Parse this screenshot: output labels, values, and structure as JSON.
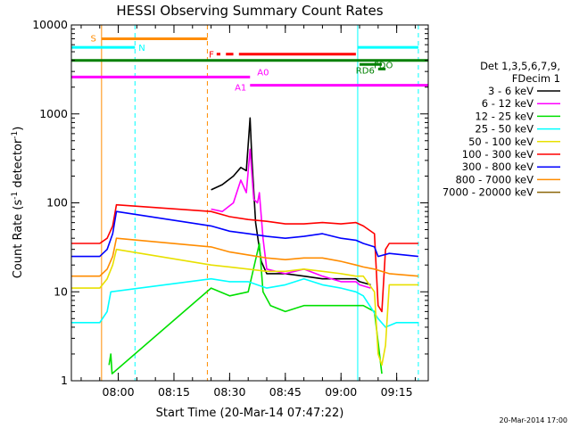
{
  "chart_data": {
    "type": "line",
    "title": "HESSI Observing Summary Count Rates",
    "xlabel": "Start Time (20-Mar-14 07:47:22)",
    "ylabel": "Count Rate (s⁻¹ detector⁻¹)",
    "ylabel_main": "Count Rate (s",
    "ylabel_exp1": "-1",
    "ylabel_mid": " detector",
    "ylabel_exp2": "-1",
    "ylabel_end": ")",
    "footer": "20-Mar-2014 17:00",
    "y_scale": "log",
    "xlim": [
      "07:47:22",
      "09:23:30"
    ],
    "ylim": [
      1,
      10000
    ],
    "x_ticks": [
      "08:00",
      "08:15",
      "08:30",
      "08:45",
      "09:00",
      "09:15"
    ],
    "y_ticks": [
      "1",
      "10",
      "100",
      "1000",
      "10000"
    ],
    "legend": {
      "placement": "right",
      "header": [
        "Det 1,3,5,6,7,9,",
        "FDecim 1"
      ],
      "entries": [
        {
          "label": "3 - 6 keV",
          "color": "#000000"
        },
        {
          "label": "6 - 12 keV",
          "color": "#ff00ff"
        },
        {
          "label": "12 - 25 keV",
          "color": "#00e000"
        },
        {
          "label": "25 - 50 keV",
          "color": "#00ffff"
        },
        {
          "label": "50 - 100 keV",
          "color": "#e8e000"
        },
        {
          "label": "100 - 300 keV",
          "color": "#ff0000"
        },
        {
          "label": "300 - 800 keV",
          "color": "#0000ff"
        },
        {
          "label": "800 - 7000 keV",
          "color": "#ff8c00"
        },
        {
          "label": "7000 - 20000 keV",
          "color": "#8b6508"
        }
      ]
    },
    "vertical_lines": [
      {
        "time": "07:47:22",
        "color": "#00ffff",
        "style": "solid"
      },
      {
        "time": "07:55:30",
        "color": "#ff8c00",
        "style": "solid"
      },
      {
        "time": "08:04:30",
        "color": "#00ffff",
        "style": "dashed"
      },
      {
        "time": "08:24:00",
        "color": "#ff8c00",
        "style": "dashed"
      },
      {
        "time": "09:04:30",
        "color": "#00ffff",
        "style": "solid"
      },
      {
        "time": "09:20:50",
        "color": "#00ffff",
        "style": "dashed"
      }
    ],
    "flag_bars": [
      {
        "label": "S",
        "color": "#ff8c00",
        "y": 7000,
        "segments": [
          [
            "07:55:30",
            "08:24:00"
          ]
        ]
      },
      {
        "label": "N",
        "color": "#00ffff",
        "y": 5600,
        "segments": [
          [
            "07:47:22",
            "08:04:30"
          ],
          [
            "09:04:30",
            "09:20:50"
          ]
        ]
      },
      {
        "label": "F",
        "color": "#ff0000",
        "y": 4700,
        "segments": [
          [
            "08:26:30",
            "08:27:30"
          ],
          [
            "08:29:00",
            "08:31:00"
          ],
          [
            "08:32:30",
            "09:04:00"
          ]
        ]
      },
      {
        "label": "",
        "color": "#008000",
        "y": 4000,
        "segments": [
          [
            "07:47:22",
            "09:23:30"
          ]
        ]
      },
      {
        "label": "FDO",
        "color": "#008000",
        "y": 3600,
        "segments": [
          [
            "09:05:00",
            "09:11:00"
          ]
        ]
      },
      {
        "label": "RD6",
        "color": "#008000",
        "y": 3200,
        "segments": [
          [
            "09:10:00",
            "09:12:00"
          ]
        ]
      },
      {
        "label": "A0",
        "color": "#ff00ff",
        "y": 2600,
        "segments": [
          [
            "07:47:22",
            "08:35:30"
          ]
        ]
      },
      {
        "label": "A1",
        "color": "#ff00ff",
        "y": 2100,
        "segments": [
          [
            "08:35:30",
            "09:23:30"
          ]
        ]
      }
    ],
    "series": [
      {
        "name": "3 - 6 keV",
        "color": "#000000",
        "points": [
          [
            "08:25:00",
            140
          ],
          [
            "08:28:00",
            160
          ],
          [
            "08:31:00",
            200
          ],
          [
            "08:33:00",
            250
          ],
          [
            "08:34:30",
            230
          ],
          [
            "08:35:30",
            900
          ],
          [
            "08:36:00",
            300
          ],
          [
            "08:37:00",
            60
          ],
          [
            "08:38:30",
            22
          ],
          [
            "08:40:00",
            16
          ],
          [
            "08:45:00",
            16
          ],
          [
            "08:50:00",
            15
          ],
          [
            "08:55:00",
            14
          ],
          [
            "09:00:00",
            14
          ],
          [
            "09:04:00",
            14
          ],
          [
            "09:05:00",
            13
          ],
          [
            "09:08:00",
            12
          ]
        ]
      },
      {
        "name": "6 - 12 keV",
        "color": "#ff00ff",
        "points": [
          [
            "08:25:00",
            85
          ],
          [
            "08:28:00",
            80
          ],
          [
            "08:31:00",
            100
          ],
          [
            "08:33:00",
            180
          ],
          [
            "08:34:30",
            130
          ],
          [
            "08:35:30",
            400
          ],
          [
            "08:36:30",
            110
          ],
          [
            "08:37:30",
            100
          ],
          [
            "08:38:00",
            130
          ],
          [
            "08:39:00",
            40
          ],
          [
            "08:40:00",
            18
          ],
          [
            "08:45:00",
            16
          ],
          [
            "08:50:00",
            18
          ],
          [
            "08:55:00",
            15
          ],
          [
            "09:00:00",
            13
          ],
          [
            "09:04:00",
            13
          ],
          [
            "09:05:00",
            12
          ],
          [
            "09:08:00",
            11
          ]
        ]
      },
      {
        "name": "12 - 25 keV",
        "color": "#00e000",
        "points": [
          [
            "07:57:30",
            1.5
          ],
          [
            "07:58:00",
            2
          ],
          [
            "07:58:20",
            1.2
          ],
          [
            "08:25:00",
            11
          ],
          [
            "08:30:00",
            9
          ],
          [
            "08:35:00",
            10
          ],
          [
            "08:38:00",
            35
          ],
          [
            "08:39:00",
            10
          ],
          [
            "08:41:00",
            7
          ],
          [
            "08:45:00",
            6
          ],
          [
            "08:50:00",
            7
          ],
          [
            "08:55:00",
            7
          ],
          [
            "09:00:00",
            7
          ],
          [
            "09:04:00",
            7
          ],
          [
            "09:06:00",
            7
          ],
          [
            "09:09:00",
            6
          ],
          [
            "09:11:00",
            1.2
          ]
        ]
      },
      {
        "name": "25 - 50 keV",
        "color": "#00ffff",
        "points": [
          [
            "07:47:22",
            4.5
          ],
          [
            "07:55:00",
            4.5
          ],
          [
            "07:57:00",
            6
          ],
          [
            "07:58:00",
            10
          ],
          [
            "08:25:00",
            14
          ],
          [
            "08:30:00",
            13
          ],
          [
            "08:35:00",
            13
          ],
          [
            "08:40:00",
            11
          ],
          [
            "08:45:00",
            12
          ],
          [
            "08:50:00",
            14
          ],
          [
            "08:55:00",
            12
          ],
          [
            "09:00:00",
            11
          ],
          [
            "09:04:00",
            10
          ],
          [
            "09:06:00",
            9
          ],
          [
            "09:10:00",
            5
          ],
          [
            "09:12:00",
            4
          ],
          [
            "09:15:00",
            4.5
          ],
          [
            "09:20:50",
            4.5
          ]
        ]
      },
      {
        "name": "50 - 100 keV",
        "color": "#e8e000",
        "points": [
          [
            "07:47:22",
            11
          ],
          [
            "07:55:00",
            11
          ],
          [
            "07:57:00",
            14
          ],
          [
            "07:58:30",
            20
          ],
          [
            "07:59:30",
            30
          ],
          [
            "08:25:00",
            20
          ],
          [
            "08:30:00",
            19
          ],
          [
            "08:35:00",
            18
          ],
          [
            "08:40:00",
            17
          ],
          [
            "08:45:00",
            17
          ],
          [
            "08:50:00",
            18
          ],
          [
            "08:55:00",
            17
          ],
          [
            "09:00:00",
            16
          ],
          [
            "09:04:00",
            15
          ],
          [
            "09:06:00",
            15
          ],
          [
            "09:09:00",
            10
          ],
          [
            "09:10:00",
            2
          ],
          [
            "09:11:00",
            1.5
          ],
          [
            "09:12:00",
            2.5
          ],
          [
            "09:13:00",
            12
          ],
          [
            "09:20:50",
            12
          ]
        ]
      },
      {
        "name": "100 - 300 keV",
        "color": "#ff0000",
        "points": [
          [
            "07:47:22",
            35
          ],
          [
            "07:55:00",
            35
          ],
          [
            "07:57:00",
            40
          ],
          [
            "07:58:30",
            55
          ],
          [
            "07:59:30",
            95
          ],
          [
            "08:25:00",
            80
          ],
          [
            "08:30:00",
            70
          ],
          [
            "08:35:00",
            65
          ],
          [
            "08:40:00",
            62
          ],
          [
            "08:45:00",
            58
          ],
          [
            "08:50:00",
            58
          ],
          [
            "08:55:00",
            60
          ],
          [
            "09:00:00",
            58
          ],
          [
            "09:04:00",
            60
          ],
          [
            "09:06:00",
            55
          ],
          [
            "09:09:00",
            45
          ],
          [
            "09:10:00",
            7
          ],
          [
            "09:11:00",
            6
          ],
          [
            "09:12:00",
            30
          ],
          [
            "09:13:00",
            35
          ],
          [
            "09:20:50",
            35
          ]
        ]
      },
      {
        "name": "300 - 800 keV",
        "color": "#0000ff",
        "points": [
          [
            "07:47:22",
            25
          ],
          [
            "07:55:00",
            25
          ],
          [
            "07:57:00",
            30
          ],
          [
            "07:58:30",
            45
          ],
          [
            "07:59:30",
            80
          ],
          [
            "08:25:00",
            55
          ],
          [
            "08:30:00",
            48
          ],
          [
            "08:35:00",
            45
          ],
          [
            "08:40:00",
            42
          ],
          [
            "08:45:00",
            40
          ],
          [
            "08:50:00",
            42
          ],
          [
            "08:55:00",
            45
          ],
          [
            "09:00:00",
            40
          ],
          [
            "09:04:00",
            38
          ],
          [
            "09:06:00",
            35
          ],
          [
            "09:09:00",
            32
          ],
          [
            "09:10:00",
            25
          ],
          [
            "09:13:00",
            27
          ],
          [
            "09:20:50",
            25
          ]
        ]
      },
      {
        "name": "800 - 7000 keV",
        "color": "#ff8c00",
        "points": [
          [
            "07:47:22",
            15
          ],
          [
            "07:55:00",
            15
          ],
          [
            "07:57:00",
            18
          ],
          [
            "07:58:30",
            25
          ],
          [
            "07:59:30",
            40
          ],
          [
            "08:25:00",
            32
          ],
          [
            "08:30:00",
            28
          ],
          [
            "08:35:00",
            26
          ],
          [
            "08:40:00",
            24
          ],
          [
            "08:45:00",
            23
          ],
          [
            "08:50:00",
            24
          ],
          [
            "08:55:00",
            24
          ],
          [
            "09:00:00",
            22
          ],
          [
            "09:04:00",
            20
          ],
          [
            "09:06:00",
            19
          ],
          [
            "09:09:00",
            18
          ],
          [
            "09:13:00",
            16
          ],
          [
            "09:20:50",
            15
          ]
        ]
      },
      {
        "name": "7000 - 20000 keV",
        "color": "#8b6508",
        "points": []
      }
    ]
  }
}
